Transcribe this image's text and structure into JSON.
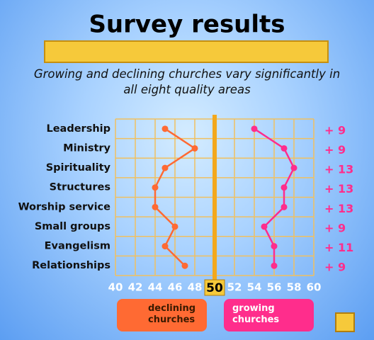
{
  "chart_data": {
    "type": "line",
    "title": "Survey results",
    "subtitle": "Growing and declining churches vary significantly in all eight quality areas",
    "orientation": "horizontal",
    "categories": [
      "Leadership",
      "Ministry",
      "Spirituality",
      "Structures",
      "Worship service",
      "Small groups",
      "Evangelism",
      "Relationships"
    ],
    "series": [
      {
        "name": "declining churches",
        "color": "#ff6a33",
        "values": [
          45,
          48,
          45,
          44,
          44,
          46,
          45,
          47
        ]
      },
      {
        "name": "growing churches",
        "color": "#ff2d8c",
        "values": [
          54,
          57,
          58,
          57,
          57,
          55,
          56,
          56
        ]
      }
    ],
    "difference_labels": [
      "+ 9",
      "+ 9",
      "+ 13",
      "+ 13",
      "+ 13",
      "+ 9",
      "+ 11",
      "+ 9"
    ],
    "xlim": [
      40,
      60
    ],
    "xticks": [
      40,
      42,
      44,
      46,
      48,
      50,
      52,
      54,
      56,
      58,
      60
    ],
    "reference_line": 50,
    "grid": true
  }
}
